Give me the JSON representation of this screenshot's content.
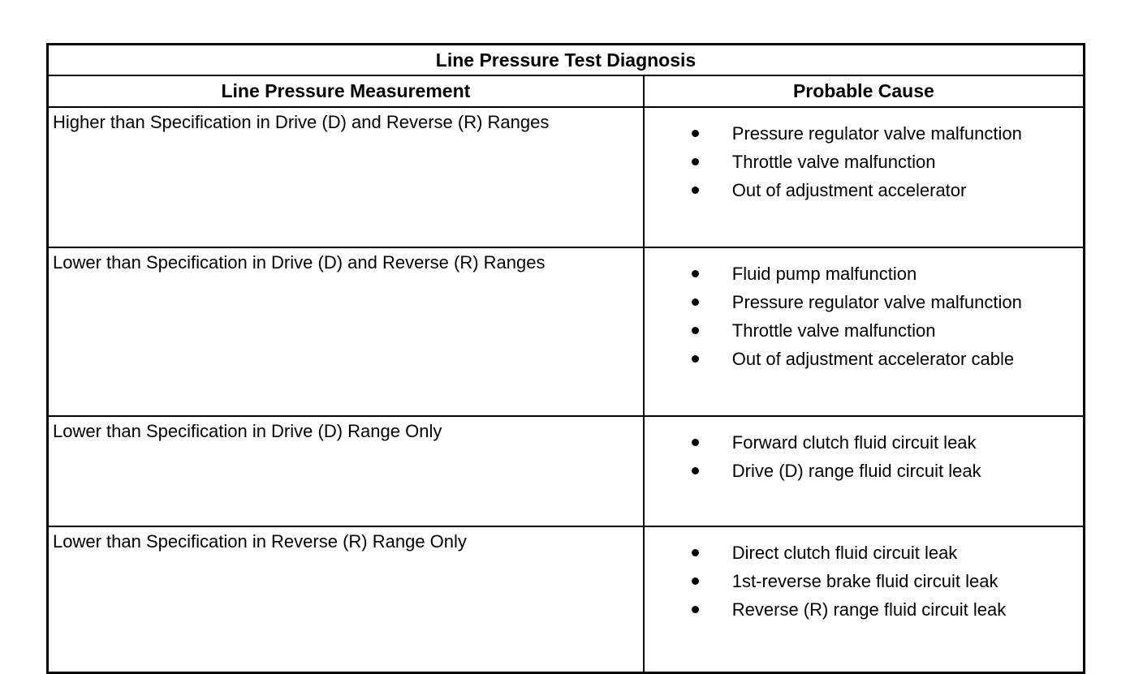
{
  "colors": {
    "border": "#000000",
    "background": "#ffffff",
    "text": "#000000"
  },
  "table": {
    "title": "Line Pressure Test Diagnosis",
    "columns": [
      "Line Pressure Measurement",
      "Probable Cause"
    ],
    "bullet_icon": "filled-circle",
    "rows": [
      {
        "measurement": "Higher than Specification in Drive (D) and Reverse (R) Ranges",
        "causes": [
          "Pressure regulator valve malfunction",
          "Throttle valve malfunction",
          "Out of adjustment accelerator"
        ]
      },
      {
        "measurement": "Lower than Specification in Drive (D) and Reverse (R) Ranges",
        "causes": [
          "Fluid pump malfunction",
          "Pressure regulator valve malfunction",
          "Throttle valve malfunction",
          "Out of adjustment accelerator cable"
        ]
      },
      {
        "measurement": "Lower than Specification in Drive (D) Range Only",
        "causes": [
          "Forward clutch fluid circuit leak",
          "Drive (D) range fluid circuit leak"
        ]
      },
      {
        "measurement": "Lower than Specification in Reverse (R) Range Only",
        "causes": [
          "Direct clutch fluid circuit leak",
          "1st-reverse brake fluid circuit leak",
          "Reverse (R) range fluid circuit leak"
        ]
      }
    ]
  }
}
